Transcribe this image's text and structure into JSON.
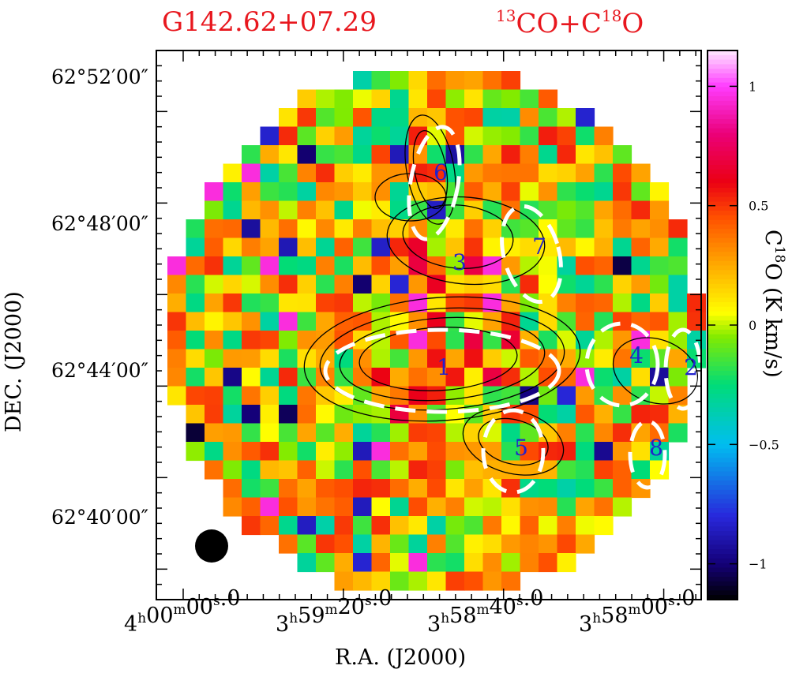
{
  "titles": {
    "source": "G142.62+07.29",
    "tracer_parts": [
      "13",
      "CO+C",
      "18",
      "O"
    ]
  },
  "chart_data": {
    "type": "heatmap",
    "xlabel": "R.A. (J2000)",
    "ylabel": "DEC. (J2000)",
    "colorbar_label": "C18O (K km/s)",
    "colorbar_label_parts": [
      "C",
      "18",
      "O  (K km/s)"
    ],
    "colorbar_ticks": [
      1,
      0.5,
      0,
      -0.5,
      -1
    ],
    "colorbar_tick_labels": [
      "1",
      "0.5",
      "0",
      "−0.5",
      "−1"
    ],
    "colorbar_range": [
      -1.15,
      1.15
    ],
    "ra_tick_labels": [
      {
        "h": "4",
        "m": "00",
        "s": "00",
        "frac": "0"
      },
      {
        "h": "3",
        "m": "59",
        "s": "20",
        "frac": "0"
      },
      {
        "h": "3",
        "m": "58",
        "s": "40",
        "frac": "0"
      },
      {
        "h": "3",
        "m": "58",
        "s": "00",
        "frac": "0"
      }
    ],
    "dec_tick_labels": [
      "62°52′00″",
      "62°48′00″",
      "62°44′00″",
      "62°40′00″"
    ],
    "clump_labels": [
      "1",
      "2",
      "3",
      "4",
      "5",
      "6",
      "7",
      "8"
    ],
    "grid": false,
    "beam": "filled circle, lower-left"
  },
  "colors": {
    "title": "#e8171e",
    "clump_label": "#2222cc",
    "ellipse": "#ffffff",
    "contour": "#000000"
  }
}
